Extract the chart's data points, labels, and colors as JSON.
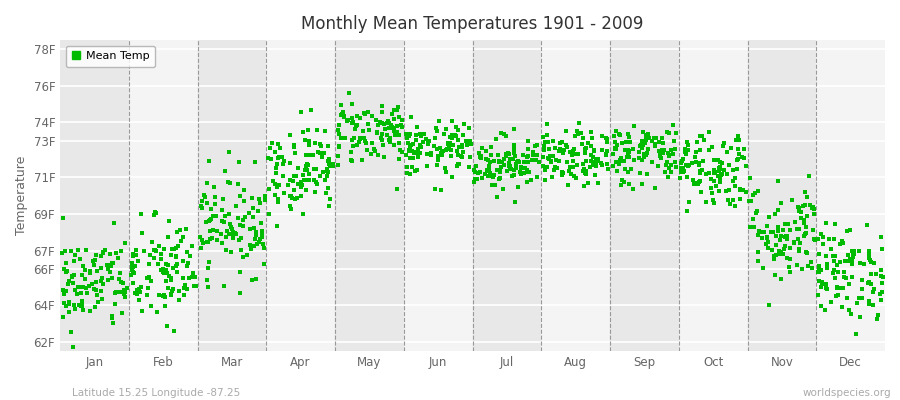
{
  "title": "Monthly Mean Temperatures 1901 - 2009",
  "ylabel": "Temperature",
  "yticks": [
    62,
    64,
    66,
    67,
    69,
    71,
    73,
    74,
    76,
    78
  ],
  "ytick_labels": [
    "62F",
    "64F",
    "66F",
    "67F",
    "69F",
    "71F",
    "73F",
    "74F",
    "76F",
    "78F"
  ],
  "ylim": [
    61.5,
    78.5
  ],
  "months": [
    "Jan",
    "Feb",
    "Mar",
    "Apr",
    "May",
    "Jun",
    "Jul",
    "Aug",
    "Sep",
    "Oct",
    "Nov",
    "Dec"
  ],
  "dot_color": "#00bb00",
  "dot_size": 5,
  "background_color": "#ffffff",
  "plot_bg_color": "#ffffff",
  "band_color_dark": "#e8e8e8",
  "band_color_light": "#f4f4f4",
  "grid_color": "#ffffff",
  "dashed_line_color": "#999999",
  "legend_label": "Mean Temp",
  "footnote_left": "Latitude 15.25 Longitude -87.25",
  "footnote_right": "worldspecies.org",
  "seed": 42,
  "n_years": 109,
  "monthly_means": [
    65.2,
    65.8,
    68.5,
    71.5,
    73.5,
    72.5,
    71.8,
    72.0,
    72.3,
    71.5,
    68.0,
    65.8
  ],
  "monthly_stds": [
    1.3,
    1.5,
    1.4,
    1.2,
    0.9,
    0.75,
    0.75,
    0.75,
    0.85,
    1.1,
    1.4,
    1.3
  ]
}
